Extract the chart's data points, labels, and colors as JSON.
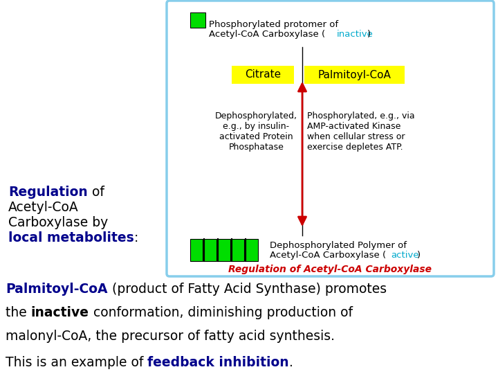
{
  "bg_color": "#ffffff",
  "box_border_color": "#87CEEB",
  "green_color": "#00dd00",
  "yellow_bg": "#ffff00",
  "red_color": "#cc0000",
  "dark_blue": "#00008B",
  "cyan_color": "#00AACC",
  "top_label_line1": "Phosphorylated protomer of",
  "top_label_line2": "Acetyl-CoA Carboxylase (",
  "top_label_inactive": "inactive",
  "top_label_end": ")",
  "citrate_label": "Citrate",
  "palmitoyl_label": "Palmitoyl-CoA",
  "left_arrow_text": "Dephosphorylated,\ne.g., by insulin-\nactivated Protein\nPhosphatase",
  "right_arrow_text": "Phosphorylated, e.g., via\nAMP-activated Kinase\nwhen cellular stress or\nexercise depletes ATP.",
  "bottom_label_line1": "Dephosphorylated Polymer of",
  "bottom_label_line2": "Acetyl-CoA Carboxylase (",
  "bottom_label_active": "active",
  "bottom_label_end": ")",
  "box_title": "Regulation of Acetyl-CoA Carboxylase",
  "left_reg": "Regulation",
  "left_of": " of",
  "left_line2": "Acetyl-CoA",
  "left_line3": "Carboxylase by",
  "left_bold": "local metabolites",
  "left_colon": ":",
  "para1_bold": "Palmitoyl-CoA",
  "para1_rest": " (product of Fatty Acid Synthase) promotes",
  "para2_pre": "the ",
  "para2_bold": "inactive",
  "para2_rest": " conformation, diminishing production of",
  "para3": "malonyl-CoA, the precursor of fatty acid synthesis.",
  "para4_pre": "This is an example of ",
  "para4_bold": "feedback inhibition",
  "para4_end": "."
}
